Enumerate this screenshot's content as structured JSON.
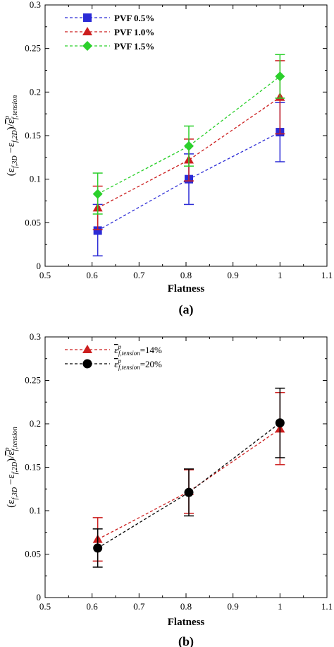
{
  "colors": {
    "blue": "#2b2bd6",
    "red": "#cc1e1e",
    "green": "#2bd02b",
    "black": "#000000"
  },
  "chart_data": [
    {
      "type": "line",
      "panel_label": "(a)",
      "xlabel": "Flatness",
      "ylabel_parts": {
        "lead": "(ε",
        "sub1": "f,3D",
        "mid": " −ε",
        "sub2": "f,2D",
        "slash": ")/",
        "bar_eps": "ε",
        "sup": "p",
        "sub3": "f,tension"
      },
      "xlim": [
        0.5,
        1.1
      ],
      "ylim": [
        0,
        0.3
      ],
      "xticks": [
        "0.5",
        "0.6",
        "0.7",
        "0.8",
        "0.9",
        "1",
        "1.1"
      ],
      "yticks": [
        "0",
        "0.05",
        "0.1",
        "0.15",
        "0.2",
        "0.25",
        "0.3"
      ],
      "legend_position": "top-left",
      "grid": false,
      "x": [
        0.612,
        0.806,
        1.0
      ],
      "series": [
        {
          "name": "PVF 0.5%",
          "color": "#2b2bd6",
          "marker": "square",
          "values": [
            0.041,
            0.1,
            0.154
          ],
          "err_low": [
            0.012,
            0.071,
            0.12
          ],
          "err_high": [
            0.071,
            0.129,
            0.188
          ]
        },
        {
          "name": "PVF 1.0%",
          "color": "#cc1e1e",
          "marker": "triangle",
          "values": [
            0.067,
            0.122,
            0.194
          ],
          "err_low": [
            0.042,
            0.098,
            0.152
          ],
          "err_high": [
            0.092,
            0.146,
            0.236
          ]
        },
        {
          "name": "PVF 1.5%",
          "color": "#2bd02b",
          "marker": "diamond",
          "values": [
            0.083,
            0.138,
            0.218
          ],
          "err_low": [
            0.06,
            0.115,
            0.193
          ],
          "err_high": [
            0.107,
            0.161,
            0.243
          ]
        }
      ]
    },
    {
      "type": "line",
      "panel_label": "(b)",
      "xlabel": "Flatness",
      "ylabel_parts": {
        "lead": "(ε",
        "sub1": "f,3D",
        "mid": " −ε",
        "sub2": "f,2D",
        "slash": ")/",
        "bar_eps": "ε",
        "sup": "p",
        "sub3": "f,tension"
      },
      "xlim": [
        0.5,
        1.1
      ],
      "ylim": [
        0,
        0.3
      ],
      "xticks": [
        "0.5",
        "0.6",
        "0.7",
        "0.8",
        "0.9",
        "1",
        "1.1"
      ],
      "yticks": [
        "0",
        "0.05",
        "0.1",
        "0.15",
        "0.2",
        "0.25",
        "0.3"
      ],
      "legend_position": "top-left",
      "grid": false,
      "x": [
        0.612,
        0.806,
        1.0
      ],
      "series": [
        {
          "name_parts": {
            "eps": "ε",
            "sup": "p",
            "sub": "f,tension",
            "value": "=14%"
          },
          "color": "#cc1e1e",
          "marker": "triangle",
          "values": [
            0.067,
            0.122,
            0.194
          ],
          "err_low": [
            0.042,
            0.097,
            0.153
          ],
          "err_high": [
            0.092,
            0.147,
            0.236
          ]
        },
        {
          "name_parts": {
            "eps": "ε",
            "sup": "p",
            "sub": "f,tension",
            "value": "=20%"
          },
          "color": "#000000",
          "marker": "circle",
          "values": [
            0.057,
            0.121,
            0.201
          ],
          "err_low": [
            0.035,
            0.094,
            0.161
          ],
          "err_high": [
            0.079,
            0.148,
            0.241
          ]
        }
      ]
    }
  ]
}
